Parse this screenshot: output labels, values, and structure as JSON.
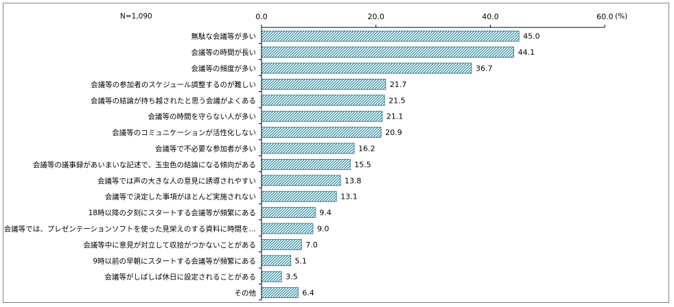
{
  "chart_data": {
    "type": "bar",
    "orientation": "horizontal",
    "n_label": "N=1,090",
    "unit": "(%)",
    "xlim": [
      0,
      60
    ],
    "ticks": [
      0,
      20,
      40,
      60
    ],
    "tick_labels": [
      "0.0",
      "20.0",
      "40.0",
      "60.0"
    ],
    "grid": false,
    "categories": [
      "無駄な会議等が多い",
      "会議等の時間が長い",
      "会議等の頻度が多い",
      "会議等の参加者のスケジュール調整するのが難しい",
      "会議等の結論が持ち越されたと思う会議がよくある",
      "会議等の時間を守らない人が多い",
      "会議等のコミュニケーションが活性化しない",
      "会議等で不必要な参加者が多い",
      "会議等の議事録があいまいな記述で、玉虫色の結論になる傾向がある",
      "会議等では声の大きな人の意見に誘導されやすい",
      "会議等で決定した事項がほとんど実施されない",
      "18時以降の夕刻にスタートする会議等が頻繁にある",
      "会議等では、プレゼンテーションソフトを使った見栄えのする資料に時間を…",
      "会議等中に意見が対立して収拾がつかないことがある",
      "9時以前の早朝にスタートする会議等が頻繁にある",
      "会議等がしばしば休日に設定されることがある",
      "その他"
    ],
    "values": [
      45.0,
      44.1,
      36.7,
      21.7,
      21.5,
      21.1,
      20.9,
      16.2,
      15.5,
      13.8,
      13.1,
      9.4,
      9.0,
      7.0,
      5.1,
      3.5,
      6.4
    ],
    "value_labels": [
      "45.0",
      "44.1",
      "36.7",
      "21.7",
      "21.5",
      "21.1",
      "20.9",
      "16.2",
      "15.5",
      "13.8",
      "13.1",
      "9.4",
      "9.0",
      "7.0",
      "5.1",
      "3.5",
      "6.4"
    ],
    "colors": {
      "bar_fill": "#2e8ba0",
      "bar_border": "#1f6f80",
      "axis": "#000000"
    }
  }
}
